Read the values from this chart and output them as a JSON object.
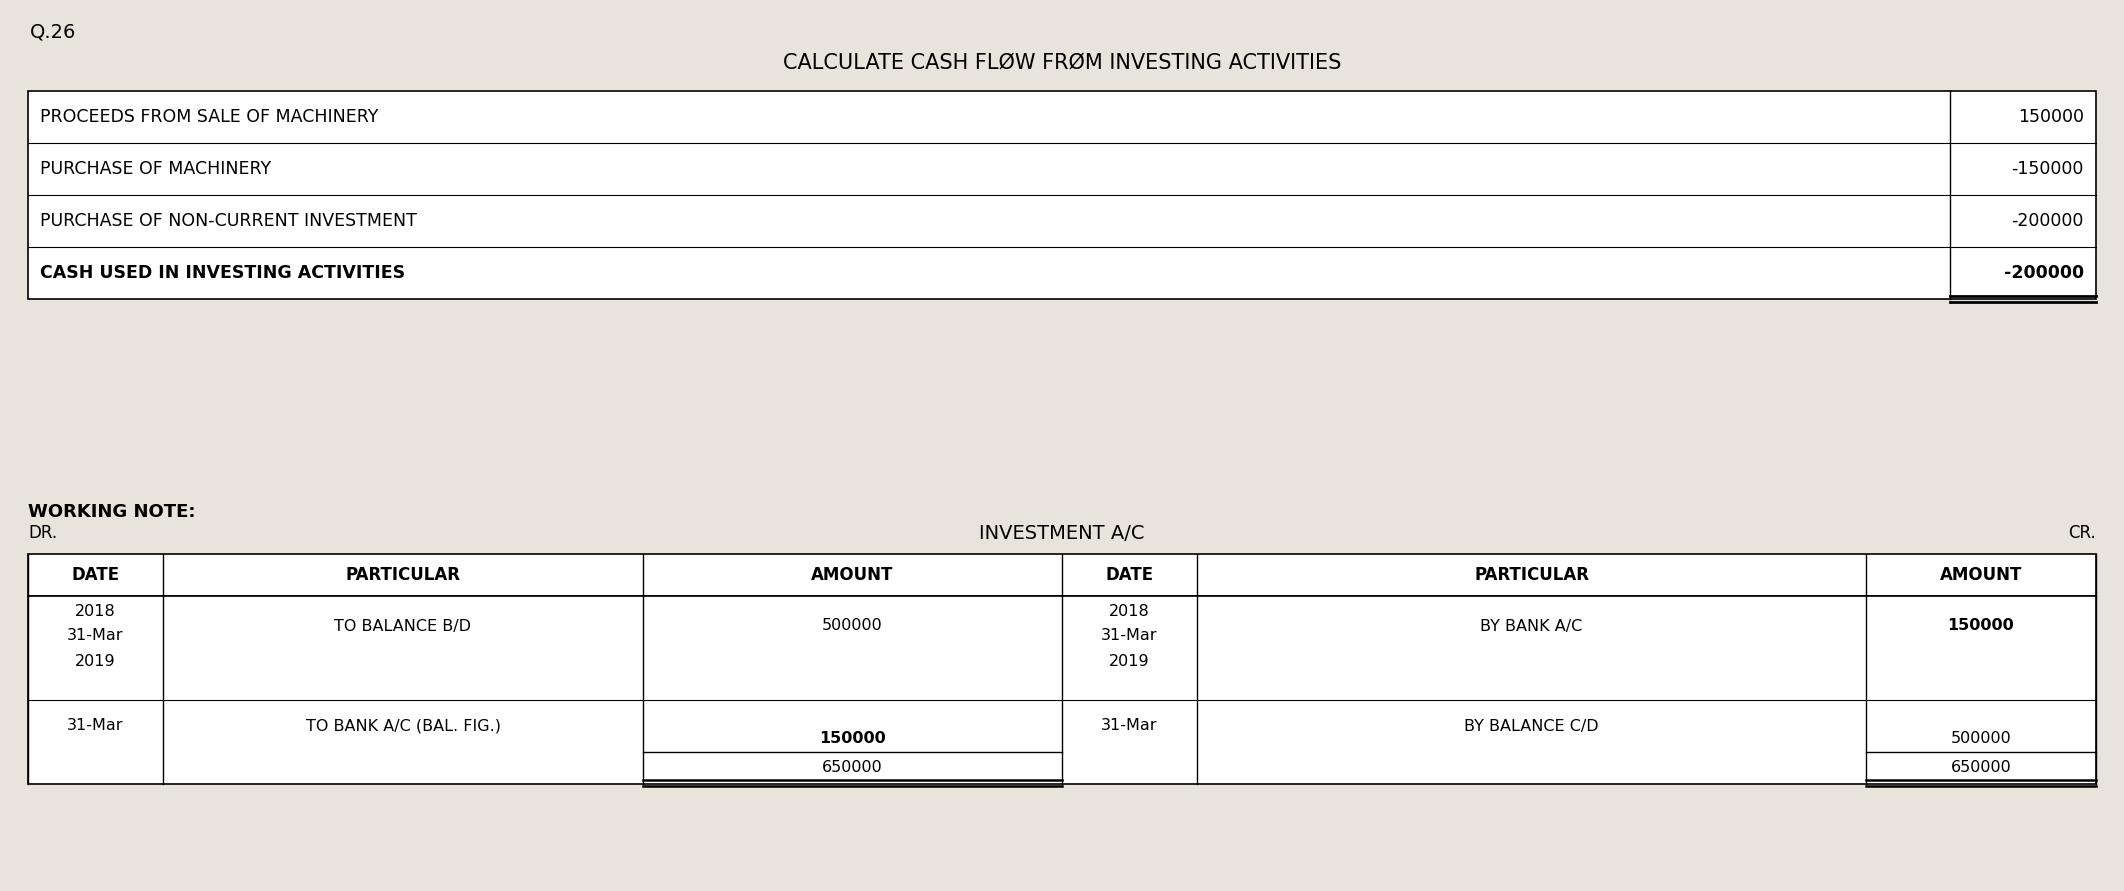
{
  "bg_color": "#e8e4dc",
  "question_label": "Q.26",
  "main_title": "CALCULATE CASH FLØW FRØM INVESTING ACTIVITIES",
  "cash_flow_rows": [
    {
      "label": "PROCEEDS FROM SALE OF MACHINERY",
      "value": "150000",
      "bold": false
    },
    {
      "label": "PURCHASE OF MACHINERY",
      "value": "-150000",
      "bold": false
    },
    {
      "label": "PURCHASE OF NON-CURRENT INVESTMENT",
      "value": "-200000",
      "bold": false
    },
    {
      "label": "CASH USED IN INVESTING ACTIVITIES",
      "value": "-200000",
      "bold": true
    }
  ],
  "working_note_label": "WORKING NOTE:",
  "dr_label": "DR.",
  "cr_label": "CR.",
  "ledger_title": "INVESTMENT A/C",
  "ledger_headers": [
    "DATE",
    "PARTICULAR",
    "AMOUNT",
    "DATE",
    "PARTICULAR",
    "AMOUNT"
  ]
}
